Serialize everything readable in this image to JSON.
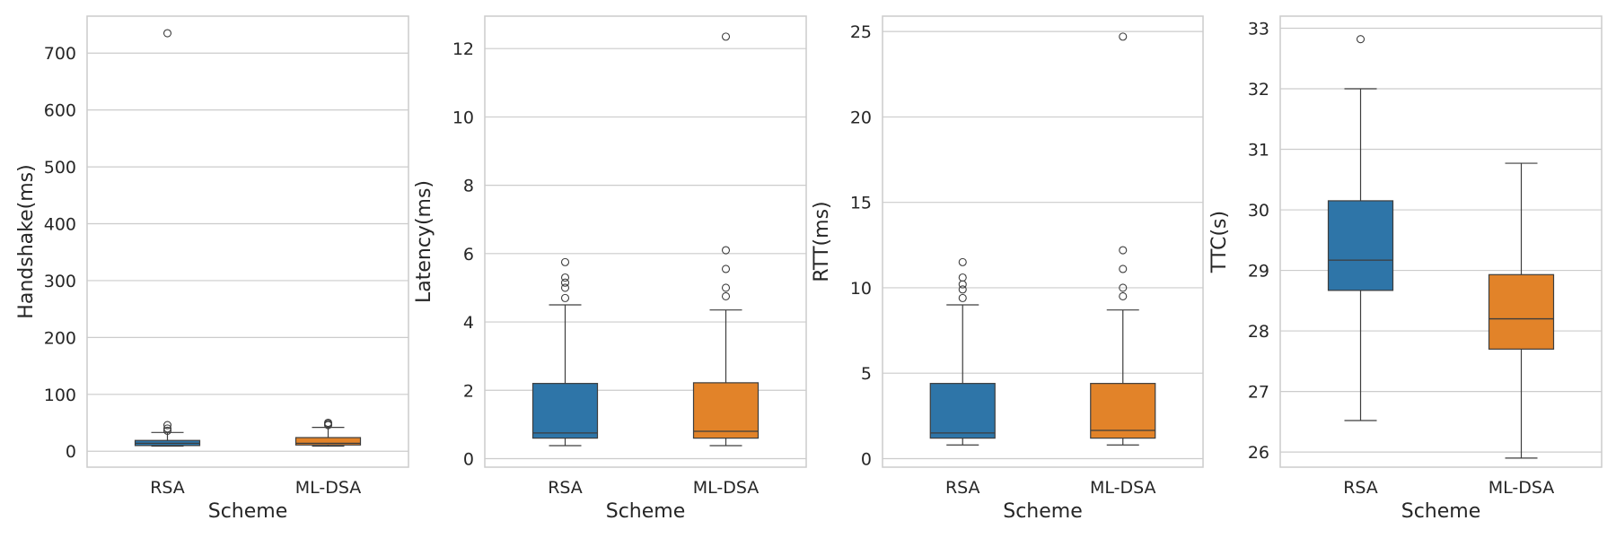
{
  "colors": {
    "RSA": "#2e75a8",
    "ML-DSA": "#e28329"
  },
  "chart_data": [
    {
      "type": "box",
      "id": "handshake",
      "title": "",
      "xlabel": "Scheme",
      "ylabel": "Handshake(ms)",
      "categories": [
        "RSA",
        "ML-DSA"
      ],
      "ylim": [
        -28,
        765
      ],
      "yticks": [
        0,
        100,
        200,
        300,
        400,
        500,
        600,
        700
      ],
      "ytick_labels": [
        "0",
        "100",
        "200",
        "300",
        "400",
        "500",
        "600",
        "700"
      ],
      "boxes": [
        {
          "name": "RSA",
          "whislo": 9,
          "q1": 10,
          "med": 14,
          "q3": 19,
          "whishi": 33,
          "fliers": [
            36,
            40,
            46,
            735
          ]
        },
        {
          "name": "ML-DSA",
          "whislo": 9,
          "q1": 11,
          "med": 14,
          "q3": 24,
          "whishi": 42,
          "fliers": [
            46,
            48,
            50
          ]
        }
      ]
    },
    {
      "type": "box",
      "id": "latency",
      "title": "",
      "xlabel": "Scheme",
      "ylabel": "Latency(ms)",
      "categories": [
        "RSA",
        "ML-DSA"
      ],
      "ylim": [
        -0.25,
        12.95
      ],
      "yticks": [
        0,
        2,
        4,
        6,
        8,
        10,
        12
      ],
      "ytick_labels": [
        "0",
        "2",
        "4",
        "6",
        "8",
        "10",
        "12"
      ],
      "boxes": [
        {
          "name": "RSA",
          "whislo": 0.38,
          "q1": 0.6,
          "med": 0.75,
          "q3": 2.2,
          "whishi": 4.5,
          "fliers": [
            4.7,
            5.0,
            5.15,
            5.3,
            5.75
          ]
        },
        {
          "name": "ML-DSA",
          "whislo": 0.38,
          "q1": 0.6,
          "med": 0.8,
          "q3": 2.22,
          "whishi": 4.35,
          "fliers": [
            4.75,
            5.0,
            5.55,
            6.1,
            12.35
          ]
        }
      ]
    },
    {
      "type": "box",
      "id": "rtt",
      "title": "",
      "xlabel": "Scheme",
      "ylabel": "RTT(ms)",
      "categories": [
        "RSA",
        "ML-DSA"
      ],
      "ylim": [
        -0.5,
        25.9
      ],
      "yticks": [
        0,
        5,
        10,
        15,
        20,
        25
      ],
      "ytick_labels": [
        "0",
        "5",
        "10",
        "15",
        "20",
        "25"
      ],
      "boxes": [
        {
          "name": "RSA",
          "whislo": 0.8,
          "q1": 1.2,
          "med": 1.5,
          "q3": 4.4,
          "whishi": 9.0,
          "fliers": [
            9.4,
            9.9,
            10.2,
            10.6,
            11.5
          ]
        },
        {
          "name": "ML-DSA",
          "whislo": 0.8,
          "q1": 1.2,
          "med": 1.65,
          "q3": 4.4,
          "whishi": 8.7,
          "fliers": [
            9.5,
            10.0,
            11.1,
            12.2,
            24.7
          ]
        }
      ]
    },
    {
      "type": "box",
      "id": "ttc",
      "title": "",
      "xlabel": "Scheme",
      "ylabel": "TTC(s)",
      "categories": [
        "RSA",
        "ML-DSA"
      ],
      "ylim": [
        25.75,
        33.2
      ],
      "yticks": [
        26,
        27,
        28,
        29,
        30,
        31,
        32,
        33
      ],
      "ytick_labels": [
        "26",
        "27",
        "28",
        "29",
        "30",
        "31",
        "32",
        "33"
      ],
      "boxes": [
        {
          "name": "RSA",
          "whislo": 26.52,
          "q1": 28.67,
          "med": 29.17,
          "q3": 30.15,
          "whishi": 32.0,
          "fliers": [
            32.82
          ]
        },
        {
          "name": "ML-DSA",
          "whislo": 25.9,
          "q1": 27.7,
          "med": 28.2,
          "q3": 28.93,
          "whishi": 30.77,
          "fliers": []
        }
      ]
    }
  ]
}
